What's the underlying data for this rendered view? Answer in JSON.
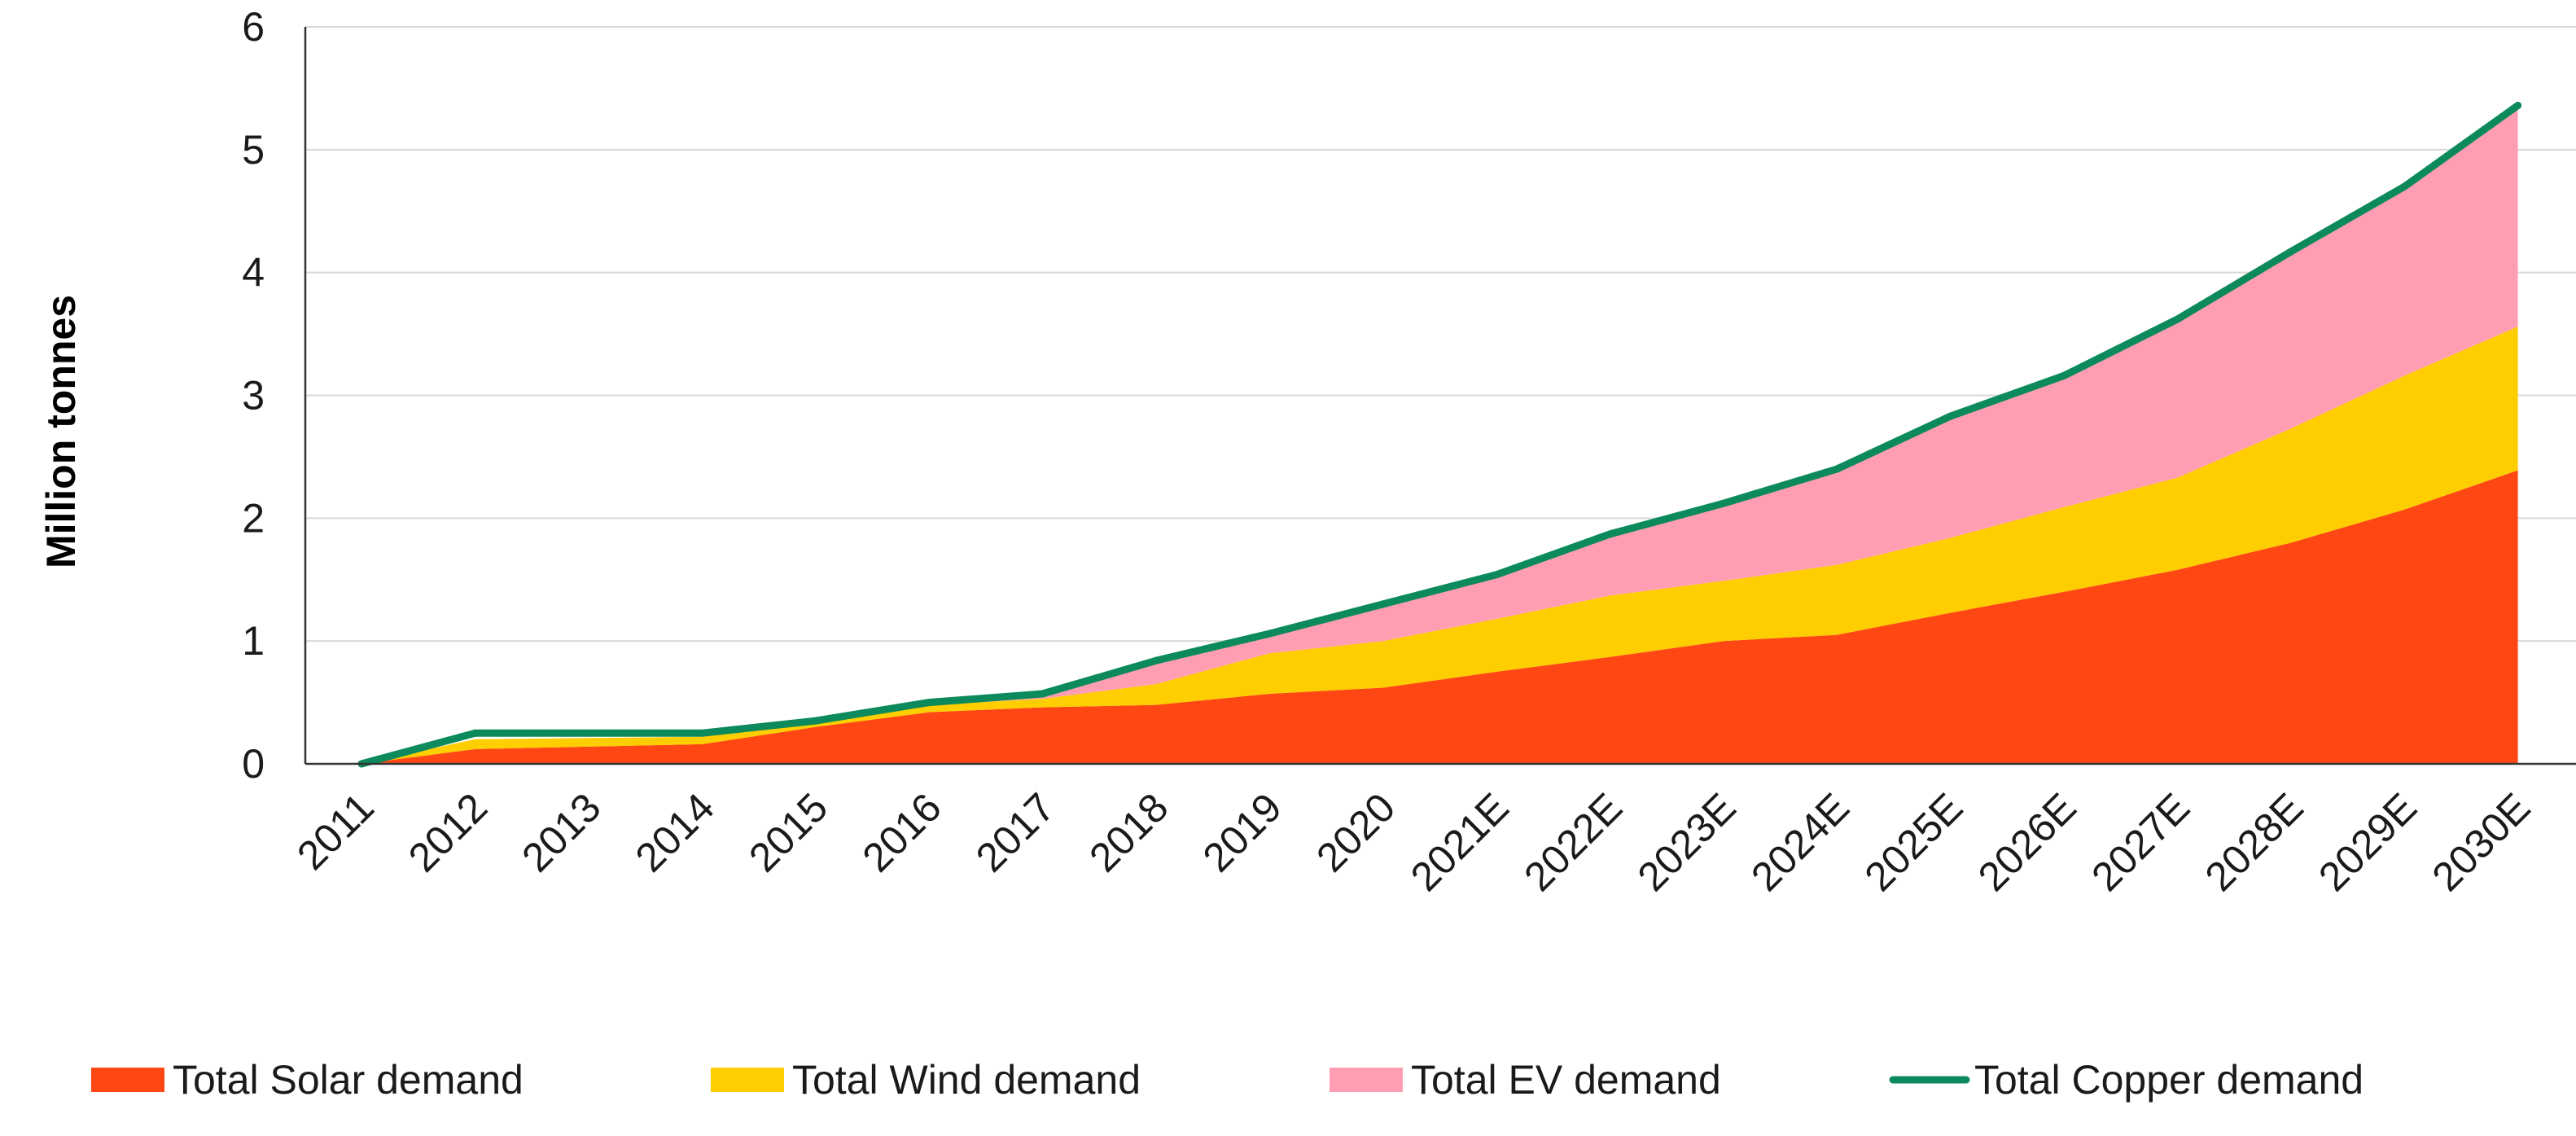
{
  "chart_data": {
    "type": "area",
    "stacked": true,
    "title": "",
    "xlabel": "",
    "ylabel": "Million tonnes",
    "ylim": [
      0,
      6
    ],
    "yticks": [
      0,
      1,
      2,
      3,
      4,
      5,
      6
    ],
    "grid": "horizontal",
    "legend_position": "bottom",
    "categories": [
      "2011",
      "2012",
      "2013",
      "2014",
      "2015",
      "2016",
      "2017",
      "2018",
      "2019",
      "2020",
      "2021E",
      "2022E",
      "2023E",
      "2024E",
      "2025E",
      "2026E",
      "2027E",
      "2028E",
      "2029E",
      "2030E"
    ],
    "series": [
      {
        "name": "Total Solar demand",
        "kind": "area",
        "color": "#ff4714",
        "values": [
          0.0,
          0.12,
          0.14,
          0.16,
          0.3,
          0.42,
          0.46,
          0.48,
          0.57,
          0.62,
          0.75,
          0.87,
          1.0,
          1.05,
          1.23,
          1.4,
          1.58,
          1.8,
          2.07,
          2.39
        ]
      },
      {
        "name": "Total Wind demand",
        "kind": "area",
        "color": "#ffce00",
        "values": [
          0.0,
          0.08,
          0.07,
          0.06,
          0.03,
          0.06,
          0.07,
          0.17,
          0.33,
          0.38,
          0.43,
          0.5,
          0.49,
          0.57,
          0.61,
          0.69,
          0.75,
          0.93,
          1.09,
          1.17
        ]
      },
      {
        "name": "Total EV demand",
        "kind": "area",
        "color": "#ff9eb3",
        "values": [
          0.0,
          0.0,
          0.0,
          0.0,
          0.0,
          0.0,
          0.02,
          0.18,
          0.16,
          0.3,
          0.36,
          0.49,
          0.62,
          0.77,
          1.0,
          1.07,
          1.29,
          1.43,
          1.54,
          1.8
        ]
      },
      {
        "name": "Total Copper demand",
        "kind": "line",
        "color": "#0c8a5c",
        "values": [
          0.0,
          0.25,
          0.25,
          0.25,
          0.35,
          0.5,
          0.57,
          0.84,
          1.06,
          1.3,
          1.54,
          1.87,
          2.12,
          2.4,
          2.83,
          3.16,
          3.62,
          4.17,
          4.7,
          5.36
        ]
      }
    ]
  }
}
